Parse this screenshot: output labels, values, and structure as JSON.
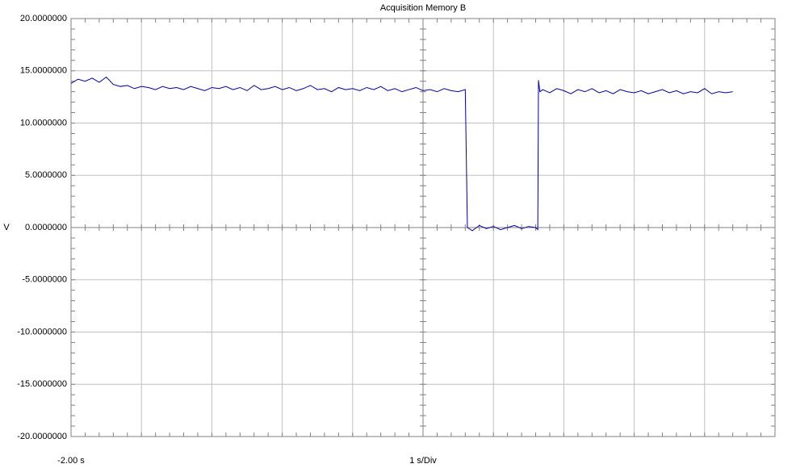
{
  "chart_data": {
    "type": "line",
    "title": "Acquisition Memory B",
    "y_label": "V",
    "x_label": "1 s/Div",
    "xlim": [
      -2,
      8
    ],
    "xticks": [
      {
        "value": -2,
        "label": "-2.00 s"
      }
    ],
    "xgrid": [
      -1,
      0,
      1,
      2,
      3,
      4,
      5,
      6,
      7,
      8
    ],
    "ylim": [
      -20,
      20
    ],
    "yticks": [
      {
        "value": 20,
        "label": "20.0000000"
      },
      {
        "value": 15,
        "label": "15.0000000"
      },
      {
        "value": 10,
        "label": "10.0000000"
      },
      {
        "value": 5,
        "label": "5.0000000"
      },
      {
        "value": 0,
        "label": "0.0000000"
      },
      {
        "value": -5,
        "label": "-5.0000000"
      },
      {
        "value": -10,
        "label": "-10.0000000"
      },
      {
        "value": -15,
        "label": "-15.0000000"
      },
      {
        "value": -20,
        "label": "-20.0000000"
      }
    ],
    "grid": true,
    "x": [
      -2.0,
      -1.9,
      -1.8,
      -1.7,
      -1.6,
      -1.5,
      -1.4,
      -1.3,
      -1.2,
      -1.1,
      -1.0,
      -0.9,
      -0.8,
      -0.7,
      -0.6,
      -0.5,
      -0.4,
      -0.3,
      -0.2,
      -0.1,
      0.0,
      0.1,
      0.2,
      0.3,
      0.4,
      0.5,
      0.6,
      0.7,
      0.8,
      0.9,
      1.0,
      1.1,
      1.2,
      1.3,
      1.4,
      1.5,
      1.6,
      1.7,
      1.8,
      1.9,
      2.0,
      2.1,
      2.2,
      2.3,
      2.4,
      2.5,
      2.6,
      2.7,
      2.8,
      2.9,
      3.0,
      3.1,
      3.2,
      3.3,
      3.4,
      3.5,
      3.6,
      3.63,
      3.7,
      3.8,
      3.9,
      4.0,
      4.1,
      4.2,
      4.3,
      4.4,
      4.5,
      4.6,
      4.63,
      4.64,
      4.66,
      4.7,
      4.8,
      4.9,
      5.0,
      5.1,
      5.2,
      5.3,
      5.4,
      5.5,
      5.6,
      5.7,
      5.8,
      5.9,
      6.0,
      6.1,
      6.2,
      6.3,
      6.4,
      6.5,
      6.6,
      6.7,
      6.8,
      6.9,
      7.0,
      7.1,
      7.2,
      7.3,
      7.4
    ],
    "series": [
      {
        "color": "#0000a0",
        "values": [
          13.8,
          14.2,
          14.0,
          14.3,
          13.9,
          14.4,
          13.7,
          13.5,
          13.6,
          13.3,
          13.5,
          13.4,
          13.2,
          13.5,
          13.3,
          13.4,
          13.2,
          13.5,
          13.3,
          13.1,
          13.4,
          13.3,
          13.5,
          13.2,
          13.4,
          13.1,
          13.6,
          13.2,
          13.3,
          13.5,
          13.2,
          13.4,
          13.1,
          13.3,
          13.6,
          13.2,
          13.3,
          13.0,
          13.4,
          13.2,
          13.3,
          13.1,
          13.4,
          13.2,
          13.5,
          13.1,
          13.3,
          13.0,
          13.2,
          13.4,
          13.1,
          13.2,
          13.0,
          13.3,
          13.1,
          13.0,
          13.2,
          0.0,
          -0.3,
          0.2,
          -0.1,
          0.1,
          -0.2,
          0.0,
          0.2,
          -0.1,
          0.1,
          0.0,
          -0.2,
          14.1,
          13.0,
          13.2,
          12.9,
          13.3,
          13.1,
          12.8,
          13.2,
          13.0,
          13.3,
          12.9,
          13.1,
          12.8,
          13.2,
          13.0,
          12.9,
          13.1,
          12.8,
          13.0,
          13.2,
          12.9,
          13.1,
          12.8,
          13.0,
          12.9,
          13.3,
          12.8,
          13.0,
          12.9,
          13.0
        ]
      }
    ]
  }
}
